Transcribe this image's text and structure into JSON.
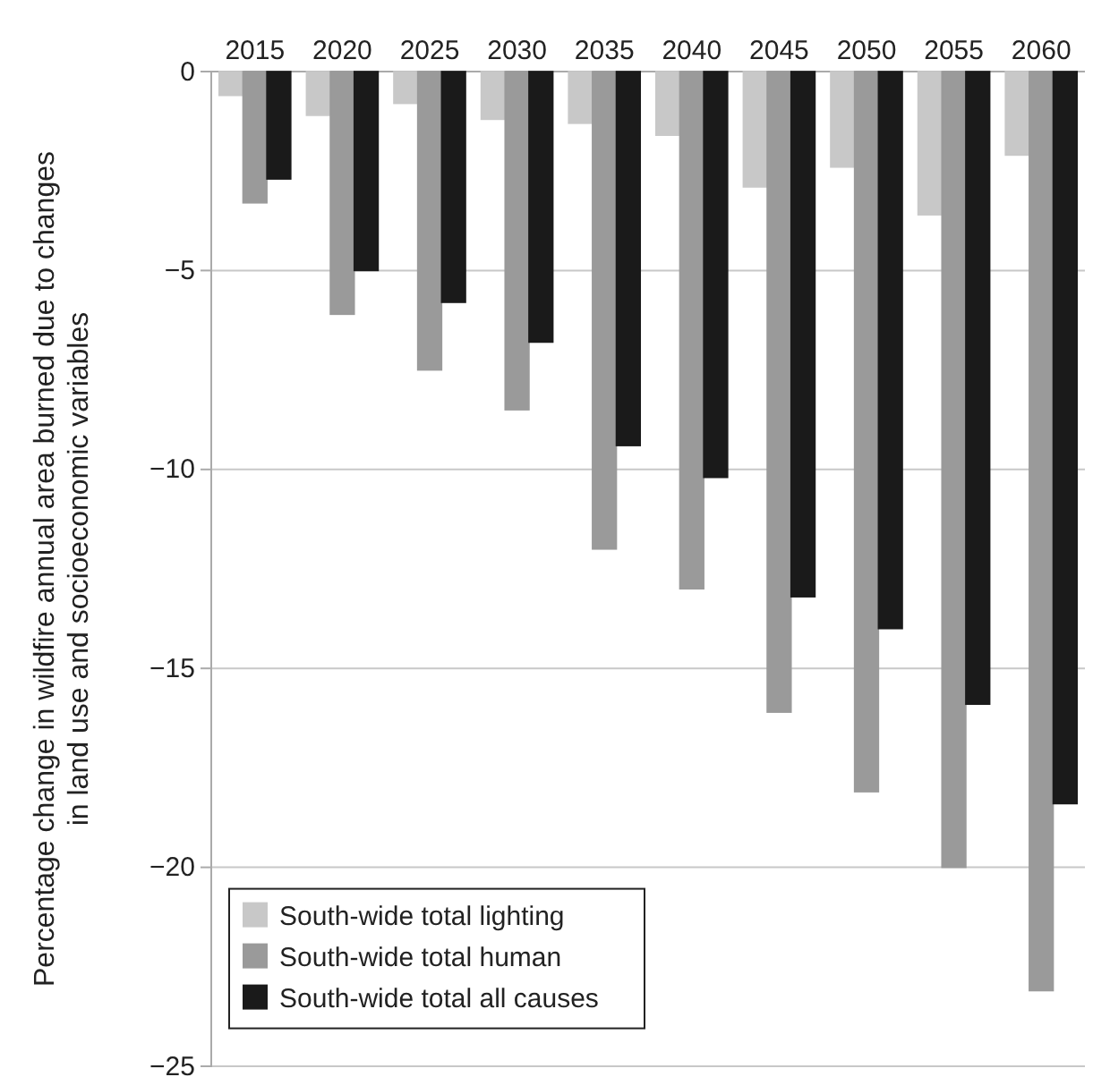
{
  "chart_data": {
    "type": "bar",
    "ylabel": "Percentage change in wildfire annual area burned due to changes in land use and socioeconomic variables",
    "categories": [
      "2015",
      "2020",
      "2025",
      "2030",
      "2035",
      "2040",
      "2045",
      "2050",
      "2055",
      "2060"
    ],
    "series": [
      {
        "name": "South-wide total lighting",
        "color": "#c8c8c8",
        "values": [
          -0.6,
          -1.1,
          -0.8,
          -1.2,
          -1.3,
          -1.6,
          -2.9,
          -2.4,
          -3.6,
          -2.1
        ]
      },
      {
        "name": "South-wide total human",
        "color": "#9a9a9a",
        "values": [
          -3.3,
          -6.1,
          -7.5,
          -8.5,
          -12.0,
          -13.0,
          -16.1,
          -18.1,
          -20.0,
          -23.1
        ]
      },
      {
        "name": "South-wide total all causes",
        "color": "#1a1a1a",
        "values": [
          -2.7,
          -5.0,
          -5.8,
          -6.8,
          -9.4,
          -10.2,
          -13.2,
          -14.0,
          -15.9,
          -18.4
        ]
      }
    ],
    "ylim": [
      -25,
      0
    ],
    "yticks": [
      0,
      {
        "value": -5,
        "label": "−5"
      },
      {
        "value": -10,
        "label": "−10"
      },
      {
        "value": -15,
        "label": "−15"
      },
      {
        "value": -20,
        "label": "−20"
      },
      {
        "value": -25,
        "label": "−25"
      }
    ],
    "grid": "y",
    "legend": "bottom left"
  }
}
